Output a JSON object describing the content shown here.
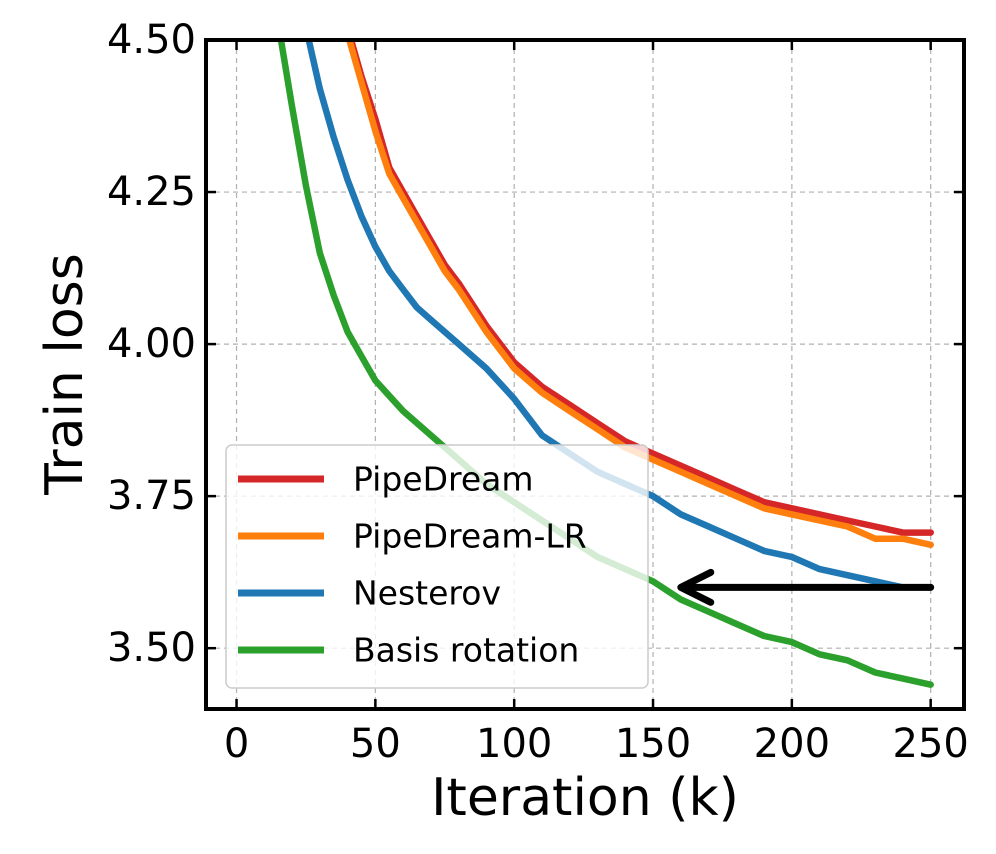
{
  "chart_data": {
    "type": "line",
    "xlabel": "Iteration (k)",
    "ylabel": "Train loss",
    "xlim": [
      -11,
      262
    ],
    "ylim": [
      3.4,
      4.5
    ],
    "xticks": [
      0,
      50,
      100,
      150,
      200,
      250
    ],
    "xtick_labels": [
      "0",
      "50",
      "100",
      "150",
      "200",
      "250"
    ],
    "yticks": [
      3.5,
      3.75,
      4.0,
      4.25,
      4.5
    ],
    "ytick_labels": [
      "3.50",
      "3.75",
      "4.00",
      "4.25",
      "4.50"
    ],
    "grid": true,
    "legend_position": "bottom-left",
    "series": [
      {
        "name": "PipeDream",
        "color": "#d62728",
        "x": [
          40,
          45,
          50,
          55,
          60,
          65,
          70,
          75,
          80,
          90,
          100,
          110,
          120,
          130,
          140,
          150,
          160,
          170,
          180,
          190,
          200,
          210,
          220,
          230,
          240,
          250
        ],
        "y": [
          4.52,
          4.44,
          4.37,
          4.29,
          4.25,
          4.21,
          4.17,
          4.13,
          4.1,
          4.03,
          3.97,
          3.93,
          3.9,
          3.87,
          3.84,
          3.82,
          3.8,
          3.78,
          3.76,
          3.74,
          3.73,
          3.72,
          3.71,
          3.7,
          3.69,
          3.69
        ]
      },
      {
        "name": "PipeDream-LR",
        "color": "#ff7f0e",
        "x": [
          40,
          45,
          50,
          55,
          60,
          65,
          70,
          75,
          80,
          90,
          100,
          110,
          120,
          130,
          140,
          150,
          160,
          170,
          180,
          190,
          200,
          210,
          220,
          230,
          240,
          250
        ],
        "y": [
          4.51,
          4.43,
          4.35,
          4.28,
          4.24,
          4.2,
          4.16,
          4.12,
          4.09,
          4.02,
          3.96,
          3.92,
          3.89,
          3.86,
          3.83,
          3.81,
          3.79,
          3.77,
          3.75,
          3.73,
          3.72,
          3.71,
          3.7,
          3.68,
          3.68,
          3.67
        ]
      },
      {
        "name": "Nesterov",
        "color": "#1f77b4",
        "x": [
          25,
          30,
          35,
          40,
          45,
          50,
          55,
          60,
          65,
          70,
          80,
          90,
          100,
          110,
          120,
          130,
          140,
          150,
          160,
          170,
          180,
          190,
          200,
          210,
          220,
          230,
          240,
          250
        ],
        "y": [
          4.52,
          4.42,
          4.34,
          4.27,
          4.21,
          4.16,
          4.12,
          4.09,
          4.06,
          4.04,
          4.0,
          3.96,
          3.91,
          3.85,
          3.82,
          3.79,
          3.77,
          3.75,
          3.72,
          3.7,
          3.68,
          3.66,
          3.65,
          3.63,
          3.62,
          3.61,
          3.6,
          3.6
        ]
      },
      {
        "name": "Basis rotation",
        "color": "#2ca02c",
        "x": [
          16,
          20,
          25,
          30,
          35,
          40,
          45,
          50,
          60,
          70,
          80,
          90,
          100,
          110,
          120,
          130,
          140,
          150,
          160,
          170,
          180,
          190,
          200,
          210,
          220,
          230,
          240,
          250
        ],
        "y": [
          4.5,
          4.39,
          4.26,
          4.15,
          4.08,
          4.02,
          3.98,
          3.94,
          3.89,
          3.85,
          3.81,
          3.77,
          3.74,
          3.71,
          3.68,
          3.65,
          3.63,
          3.61,
          3.58,
          3.56,
          3.54,
          3.52,
          3.51,
          3.49,
          3.48,
          3.46,
          3.45,
          3.44
        ]
      }
    ],
    "annotation": {
      "type": "arrow",
      "color": "#000000",
      "from": [
        250,
        3.6
      ],
      "to": [
        160,
        3.6
      ]
    }
  }
}
